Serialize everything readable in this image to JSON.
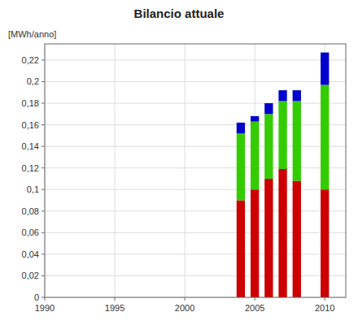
{
  "chart_data": {
    "type": "bar",
    "stacked": true,
    "title": "Bilancio attuale",
    "y_label": "[MWh/anno]",
    "x": [
      2004,
      2005,
      2006,
      2007,
      2008,
      2010
    ],
    "series": [
      {
        "color": "#cc0000",
        "values": [
          0.09,
          0.1,
          0.11,
          0.119,
          0.108,
          0.1
        ]
      },
      {
        "color": "#33cc00",
        "values": [
          0.062,
          0.063,
          0.06,
          0.063,
          0.074,
          0.097
        ]
      },
      {
        "color": "#0000cc",
        "values": [
          0.01,
          0.005,
          0.01,
          0.01,
          0.01,
          0.03
        ]
      }
    ],
    "xlim": [
      1990,
      2011.5
    ],
    "xticks": [
      1990,
      1995,
      2000,
      2005,
      2010
    ],
    "ylim": [
      0,
      0.235
    ],
    "yticks": [
      0,
      {
        "value": 0.02,
        "label": "0,02"
      },
      {
        "value": 0.04,
        "label": "0,04"
      },
      {
        "value": 0.06,
        "label": "0,06"
      },
      {
        "value": 0.08,
        "label": "0,08"
      },
      {
        "value": 0.1,
        "label": "0,1"
      },
      {
        "value": 0.12,
        "label": "0,12"
      },
      {
        "value": 0.14,
        "label": "0,14"
      },
      {
        "value": 0.16,
        "label": "0,16"
      },
      {
        "value": 0.18,
        "label": "0,18"
      },
      {
        "value": 0.2,
        "label": "0,2"
      },
      {
        "value": 0.22,
        "label": "0,22"
      }
    ],
    "grid": true
  }
}
